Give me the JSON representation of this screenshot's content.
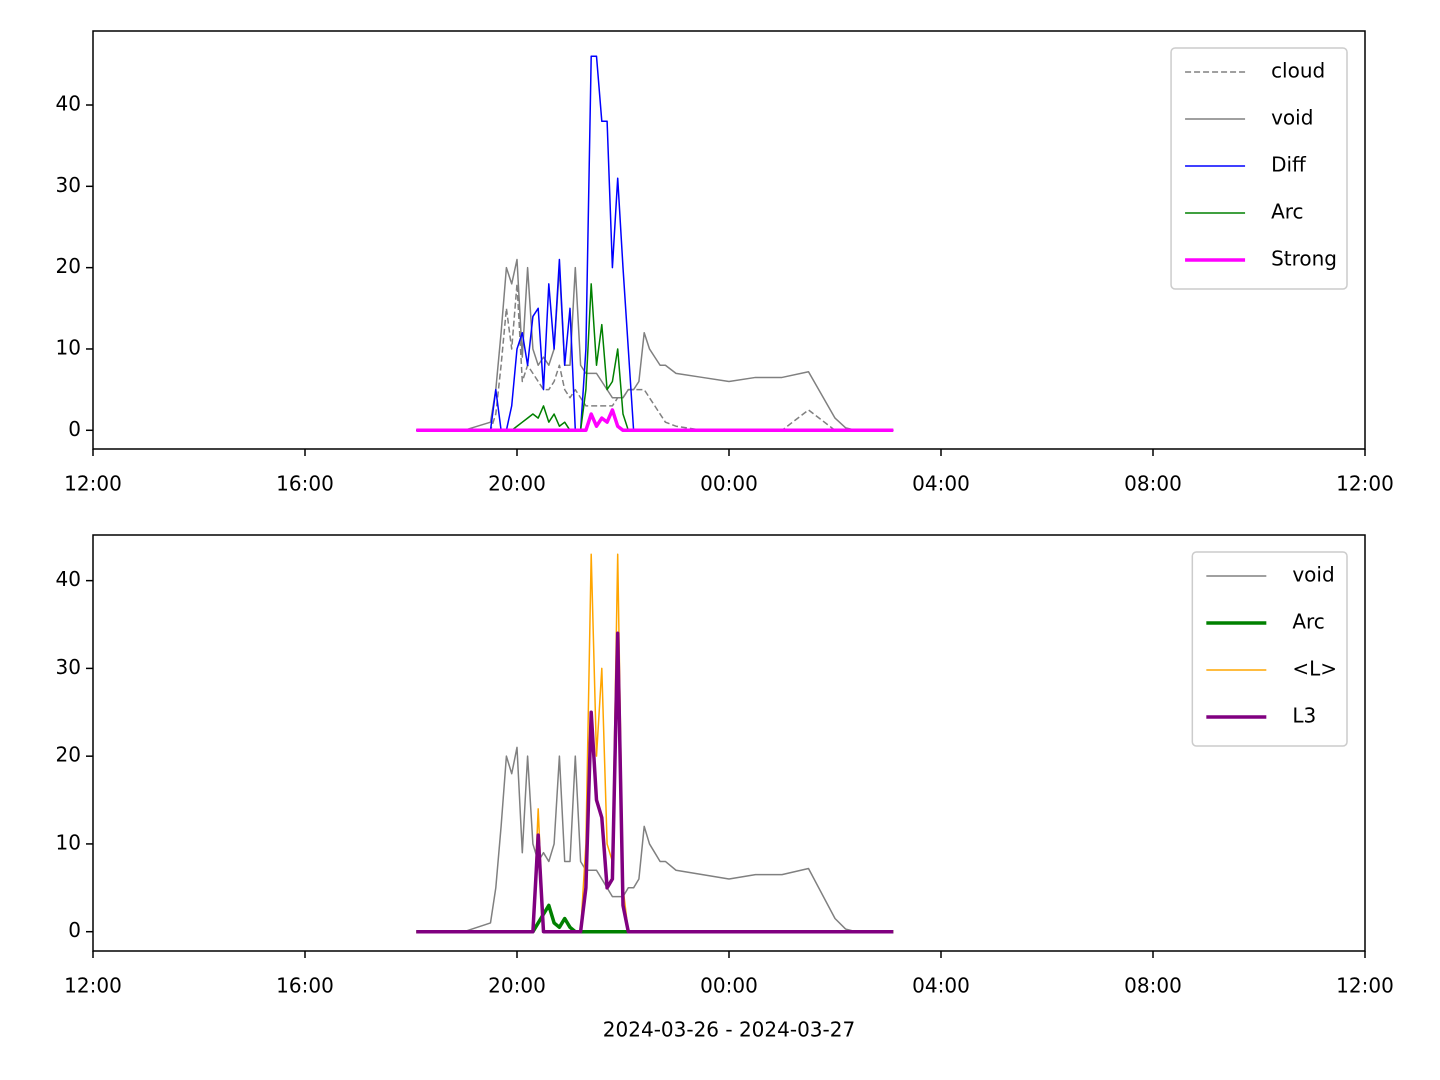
{
  "chart_data": [
    {
      "type": "line",
      "x": [
        18.1,
        19.0,
        19.5,
        19.6,
        19.7,
        19.8,
        19.9,
        20.0,
        20.1,
        20.2,
        20.3,
        20.4,
        20.5,
        20.6,
        20.7,
        20.8,
        20.9,
        21.0,
        21.1,
        21.2,
        21.3,
        21.4,
        21.5,
        21.6,
        21.7,
        21.8,
        21.9,
        22.0,
        22.1,
        22.2,
        22.3,
        22.4,
        22.5,
        22.6,
        22.7,
        22.8,
        23.0,
        23.5,
        24.0,
        24.5,
        25.0,
        25.5,
        26.0,
        26.2,
        26.4,
        26.6,
        26.8,
        27.1
      ],
      "series": [
        {
          "name": "cloud",
          "color": "#808080",
          "linestyle": "dashed",
          "linewidth": 1.5,
          "values": [
            0,
            0,
            0,
            2,
            8,
            15,
            10,
            18,
            6,
            8,
            7,
            6,
            5,
            5,
            6,
            8,
            5,
            4,
            5,
            4,
            3,
            3,
            3,
            3,
            3,
            3,
            4,
            4,
            5,
            5,
            5,
            5,
            4,
            3,
            2,
            1,
            0.5,
            0,
            0,
            0,
            0,
            2.5,
            0,
            0,
            0,
            0,
            0,
            0
          ]
        },
        {
          "name": "void",
          "color": "#808080",
          "linestyle": "solid",
          "linewidth": 1.5,
          "values": [
            0,
            0,
            1,
            5,
            12,
            20,
            18,
            21,
            9,
            20,
            10,
            8,
            9,
            8,
            10,
            20,
            8,
            8,
            20,
            8,
            7,
            7,
            7,
            6,
            5,
            4,
            4,
            4,
            5,
            5,
            6,
            12,
            10,
            9,
            8,
            8,
            7,
            6.5,
            6,
            6.5,
            6.5,
            7.2,
            1.5,
            0.3,
            0,
            0,
            0,
            0
          ]
        },
        {
          "name": "Diff",
          "color": "#0000ff",
          "linestyle": "solid",
          "linewidth": 1.5,
          "values": [
            0,
            0,
            0,
            5,
            0,
            0,
            3,
            10,
            12,
            8,
            14,
            15,
            5,
            18,
            10,
            21,
            8,
            15,
            0,
            0,
            10,
            46,
            46,
            38,
            38,
            20,
            31,
            20,
            10,
            0,
            0,
            0,
            0,
            0,
            0,
            0,
            0,
            0,
            0,
            0,
            0,
            0,
            0,
            0,
            0,
            0,
            0,
            0
          ]
        },
        {
          "name": "Arc",
          "color": "#008000",
          "linestyle": "solid",
          "linewidth": 1.5,
          "values": [
            0,
            0,
            0,
            0,
            0,
            0,
            0,
            0.5,
            1,
            1.5,
            2,
            1.5,
            3,
            1,
            2,
            0.5,
            1,
            0,
            0,
            0,
            5,
            18,
            8,
            13,
            5,
            6,
            10,
            2,
            0,
            0,
            0,
            0,
            0,
            0,
            0,
            0,
            0,
            0,
            0,
            0,
            0,
            0,
            0,
            0,
            0,
            0,
            0,
            0
          ]
        },
        {
          "name": "Strong",
          "color": "#ff00ff",
          "linestyle": "solid",
          "linewidth": 3.5,
          "values": [
            0,
            0,
            0,
            0,
            0,
            0,
            0,
            0,
            0,
            0,
            0,
            0,
            0,
            0,
            0,
            0,
            0,
            0,
            0,
            0,
            0,
            2,
            0.5,
            1.5,
            1,
            2.5,
            0.5,
            0,
            0,
            0,
            0,
            0,
            0,
            0,
            0,
            0,
            0,
            0,
            0,
            0,
            0,
            0,
            0,
            0,
            0,
            0,
            0,
            0
          ]
        }
      ],
      "xlim": [
        12,
        36
      ],
      "xticks": [
        {
          "value": 12,
          "label": "12:00"
        },
        {
          "value": 16,
          "label": "16:00"
        },
        {
          "value": 20,
          "label": "20:00"
        },
        {
          "value": 24,
          "label": "00:00"
        },
        {
          "value": 28,
          "label": "04:00"
        },
        {
          "value": 32,
          "label": "08:00"
        },
        {
          "value": 36,
          "label": "12:00"
        }
      ],
      "ylim": [
        -2.3,
        49.1
      ],
      "yticks": [
        0,
        10,
        20,
        30,
        40
      ],
      "legend": "upper right"
    },
    {
      "type": "line",
      "x": [
        18.1,
        19.0,
        19.5,
        19.6,
        19.7,
        19.8,
        19.9,
        20.0,
        20.1,
        20.2,
        20.3,
        20.4,
        20.5,
        20.6,
        20.7,
        20.8,
        20.9,
        21.0,
        21.1,
        21.2,
        21.3,
        21.4,
        21.5,
        21.6,
        21.7,
        21.8,
        21.9,
        22.0,
        22.1,
        22.2,
        22.3,
        22.4,
        22.5,
        22.6,
        22.7,
        22.8,
        23.0,
        23.5,
        24.0,
        24.5,
        25.0,
        25.5,
        26.0,
        26.2,
        26.4,
        26.6,
        26.8,
        27.1
      ],
      "series": [
        {
          "name": "void",
          "color": "#808080",
          "linestyle": "solid",
          "linewidth": 1.5,
          "values": [
            0,
            0,
            1,
            5,
            12,
            20,
            18,
            21,
            9,
            20,
            10,
            8,
            9,
            8,
            10,
            20,
            8,
            8,
            20,
            8,
            7,
            7,
            7,
            6,
            5,
            4,
            4,
            4,
            5,
            5,
            6,
            12,
            10,
            9,
            8,
            8,
            7,
            6.5,
            6,
            6.5,
            6.5,
            7.2,
            1.5,
            0.3,
            0,
            0,
            0,
            0
          ]
        },
        {
          "name": "Arc",
          "color": "#008000",
          "linestyle": "solid",
          "linewidth": 3.5,
          "values": [
            0,
            0,
            0,
            0,
            0,
            0,
            0,
            0,
            0,
            0,
            0,
            1,
            2,
            3,
            1,
            0.5,
            1.5,
            0.5,
            0,
            0,
            0,
            0,
            0,
            0,
            0,
            0,
            0,
            0,
            0,
            0,
            0,
            0,
            0,
            0,
            0,
            0,
            0,
            0,
            0,
            0,
            0,
            0,
            0,
            0,
            0,
            0,
            0,
            0
          ]
        },
        {
          "name": "<L>",
          "color": "#ffa500",
          "linestyle": "solid",
          "linewidth": 1.5,
          "values": [
            0,
            0,
            0,
            0,
            0,
            0,
            0,
            0,
            0,
            0,
            0,
            14,
            0,
            0,
            0,
            0,
            0,
            0,
            0,
            0,
            10,
            43,
            20,
            30,
            10,
            8,
            43,
            5,
            0,
            0,
            0,
            0,
            0,
            0,
            0,
            0,
            0,
            0,
            0,
            0,
            0,
            0,
            0,
            0,
            0,
            0,
            0,
            0
          ]
        },
        {
          "name": "L3",
          "color": "#800080",
          "linestyle": "solid",
          "linewidth": 3.5,
          "values": [
            0,
            0,
            0,
            0,
            0,
            0,
            0,
            0,
            0,
            0,
            0,
            11,
            0,
            0,
            0,
            0,
            0,
            0,
            0,
            0,
            5,
            25,
            15,
            13,
            5,
            6,
            34,
            3,
            0,
            0,
            0,
            0,
            0,
            0,
            0,
            0,
            0,
            0,
            0,
            0,
            0,
            0,
            0,
            0,
            0,
            0,
            0,
            0
          ]
        }
      ],
      "xlim": [
        12,
        36
      ],
      "xticks": [
        {
          "value": 12,
          "label": "12:00"
        },
        {
          "value": 16,
          "label": "16:00"
        },
        {
          "value": 20,
          "label": "20:00"
        },
        {
          "value": 24,
          "label": "00:00"
        },
        {
          "value": 28,
          "label": "04:00"
        },
        {
          "value": 32,
          "label": "08:00"
        },
        {
          "value": 36,
          "label": "12:00"
        }
      ],
      "ylim": [
        -2.2,
        45.2
      ],
      "yticks": [
        0,
        10,
        20,
        30,
        40
      ],
      "xlabel": "2024-03-26 - 2024-03-27",
      "legend": "upper right"
    }
  ]
}
